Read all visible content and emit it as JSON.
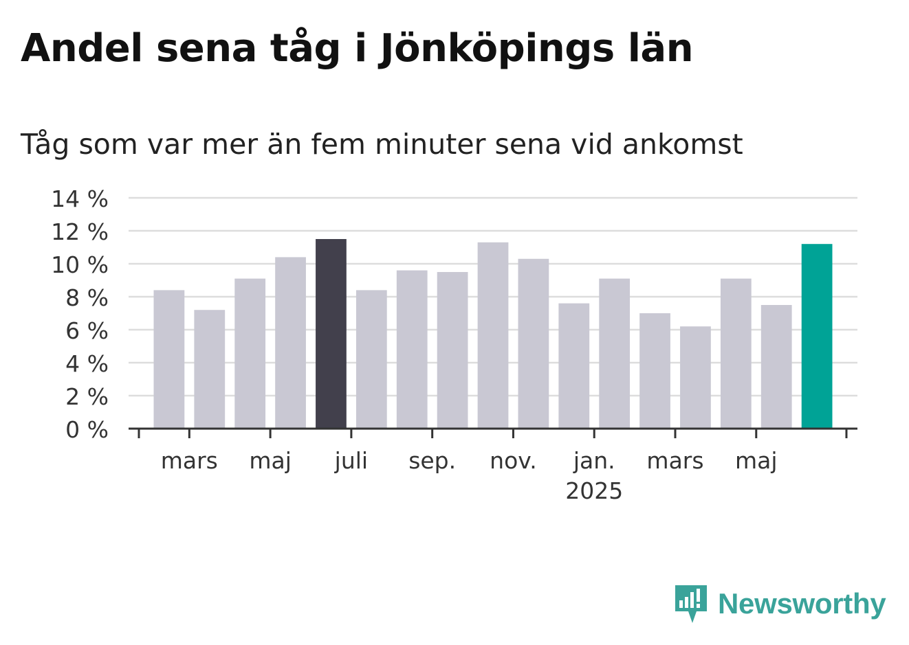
{
  "title": "Andel sena tåg i Jönköpings län",
  "subtitle": "Tåg som var mer än fem minuter sena vid ankomst",
  "brand": {
    "name": "Newsworthy",
    "icon": "newsworthy-logo-icon",
    "color": "#3aa39a"
  },
  "chart_data": {
    "type": "bar",
    "categories": [
      "2024-02",
      "2024-03",
      "2024-04",
      "2024-05",
      "2024-06",
      "2024-07",
      "2024-08",
      "2024-09",
      "2024-10",
      "2024-11",
      "2024-12",
      "2025-01",
      "2025-02",
      "2025-03",
      "2025-04",
      "2025-05",
      "2025-06"
    ],
    "values": [
      8.4,
      7.2,
      9.1,
      10.4,
      11.5,
      8.4,
      9.6,
      9.5,
      11.3,
      10.3,
      7.6,
      9.1,
      7.0,
      6.2,
      9.1,
      7.5,
      11.2
    ],
    "highlight": {
      "2024-06": "#42404c",
      "2025-06": "#00a396"
    },
    "colors": {
      "default": "#c9c8d3",
      "grid": "#dddddd",
      "axis": "#333333"
    },
    "ylim": [
      0,
      14
    ],
    "yticks": [
      "0 %",
      "2 %",
      "4 %",
      "6 %",
      "8 %",
      "10 %",
      "12 %",
      "14 %"
    ],
    "xticks": [
      {
        "at": "2024-03",
        "label": "mars",
        "sublabel": ""
      },
      {
        "at": "2024-05",
        "label": "maj",
        "sublabel": ""
      },
      {
        "at": "2024-07",
        "label": "juli",
        "sublabel": ""
      },
      {
        "at": "2024-09",
        "label": "sep.",
        "sublabel": ""
      },
      {
        "at": "2024-11",
        "label": "nov.",
        "sublabel": ""
      },
      {
        "at": "2025-01",
        "label": "jan.",
        "sublabel": "2025"
      },
      {
        "at": "2025-03",
        "label": "mars",
        "sublabel": ""
      },
      {
        "at": "2025-05",
        "label": "maj",
        "sublabel": ""
      }
    ],
    "grid": true,
    "legend": "none"
  }
}
